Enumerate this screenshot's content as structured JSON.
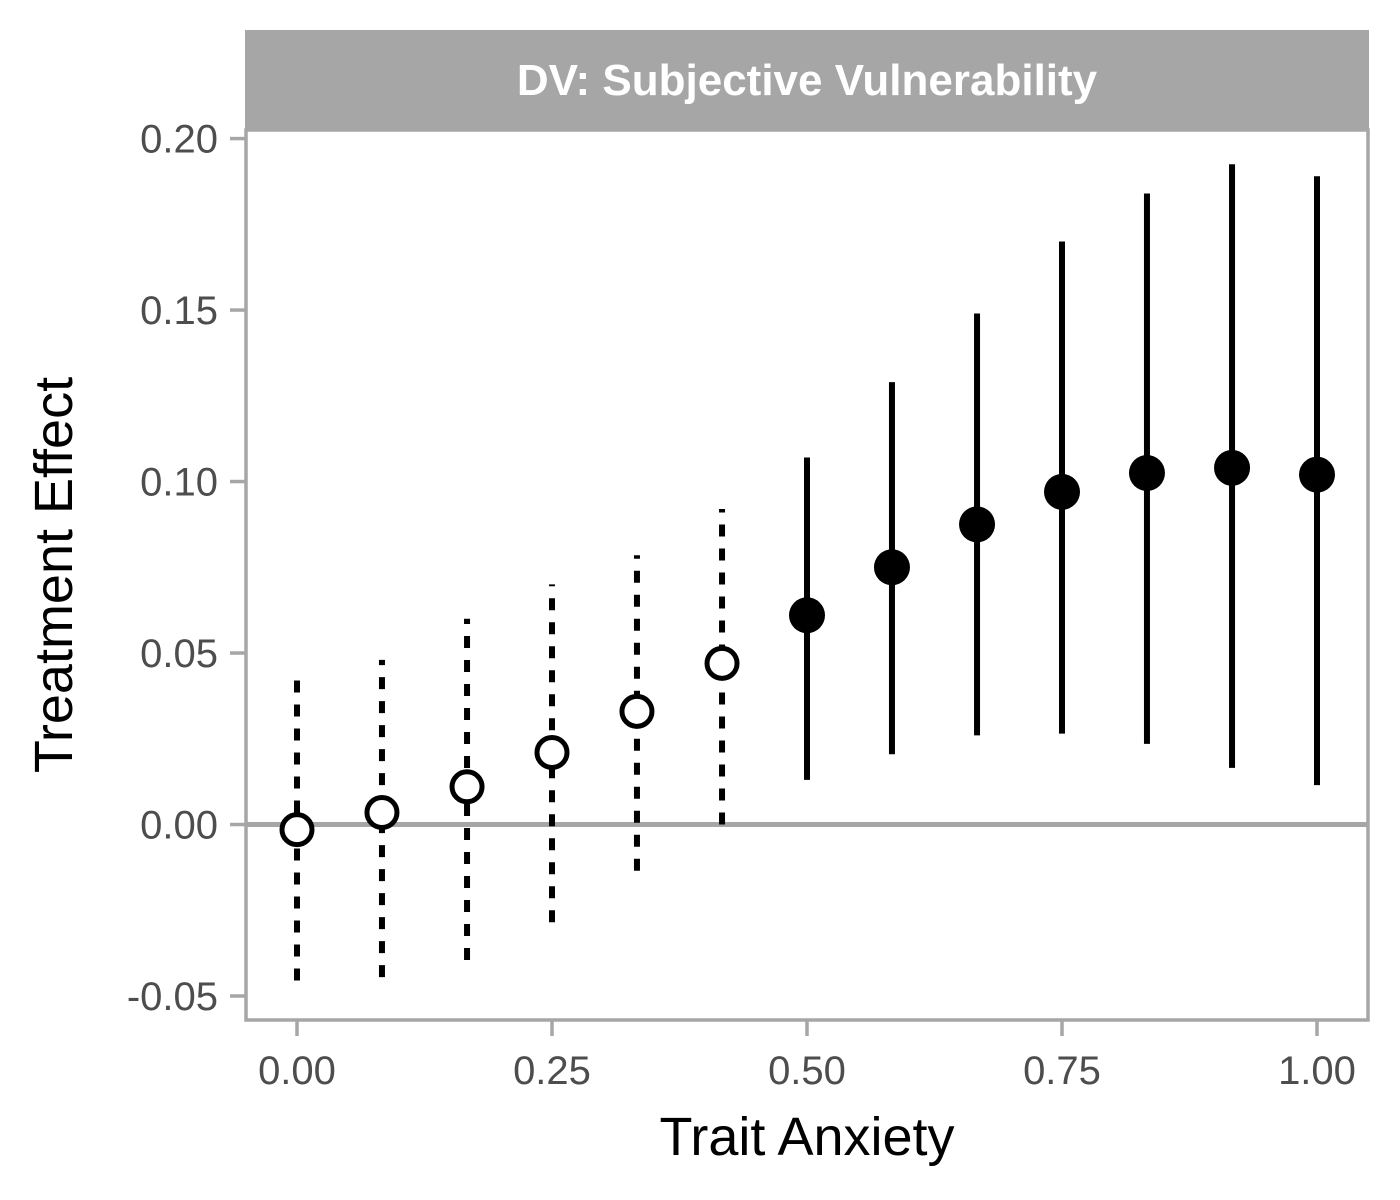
{
  "chart_data": {
    "type": "scatter",
    "title": "",
    "facet_label": "DV: Subjective Vulnerability",
    "xlabel": "Trait Anxiety",
    "ylabel": "Treatment Effect",
    "xlim": [
      -0.05,
      1.05
    ],
    "ylim": [
      -0.057,
      0.2025
    ],
    "x_ticks": [
      0.0,
      0.25,
      0.5,
      0.75,
      1.0
    ],
    "x_tick_labels": [
      "0.00",
      "0.25",
      "0.50",
      "0.75",
      "1.00"
    ],
    "y_ticks": [
      -0.05,
      0.0,
      0.05,
      0.1,
      0.15,
      0.2
    ],
    "y_tick_labels": [
      "-0.05",
      "0.00",
      "0.05",
      "0.10",
      "0.15",
      "0.20"
    ],
    "reference_line_y": 0,
    "grid": false,
    "legend": "none",
    "colors": {
      "points": "#000000",
      "reference_line": "#a6a6a6",
      "strip": "#a6a6a6",
      "panel_border": "#a6a6a6"
    },
    "points": [
      {
        "x": 0.0,
        "y": -0.0015,
        "lower": -0.0455,
        "upper": 0.044,
        "significant": false
      },
      {
        "x": 0.0833,
        "y": 0.0035,
        "lower": -0.0445,
        "upper": 0.048,
        "significant": false
      },
      {
        "x": 0.1667,
        "y": 0.011,
        "lower": -0.0395,
        "upper": 0.06,
        "significant": false
      },
      {
        "x": 0.25,
        "y": 0.021,
        "lower": -0.0285,
        "upper": 0.07,
        "significant": false
      },
      {
        "x": 0.3333,
        "y": 0.033,
        "lower": -0.0135,
        "upper": 0.0785,
        "significant": false
      },
      {
        "x": 0.4167,
        "y": 0.047,
        "lower": 0.0,
        "upper": 0.092,
        "significant": false
      },
      {
        "x": 0.5,
        "y": 0.061,
        "lower": 0.013,
        "upper": 0.107,
        "significant": true
      },
      {
        "x": 0.5833,
        "y": 0.075,
        "lower": 0.0205,
        "upper": 0.129,
        "significant": true
      },
      {
        "x": 0.6667,
        "y": 0.0875,
        "lower": 0.026,
        "upper": 0.149,
        "significant": true
      },
      {
        "x": 0.75,
        "y": 0.097,
        "lower": 0.0265,
        "upper": 0.17,
        "significant": true
      },
      {
        "x": 0.8333,
        "y": 0.1025,
        "lower": 0.0235,
        "upper": 0.184,
        "significant": true
      },
      {
        "x": 0.9167,
        "y": 0.104,
        "lower": 0.0165,
        "upper": 0.1925,
        "significant": true
      },
      {
        "x": 1.0,
        "y": 0.102,
        "lower": 0.0115,
        "upper": 0.189,
        "significant": true
      }
    ]
  }
}
